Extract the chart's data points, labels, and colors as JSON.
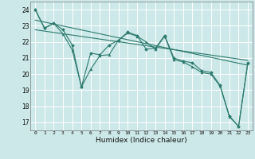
{
  "xlabel": "Humidex (Indice chaleur)",
  "bg_color": "#cce8e8",
  "grid_color": "#ffffff",
  "line_color": "#2d7a6e",
  "xlim": [
    -0.5,
    23.5
  ],
  "ylim": [
    16.5,
    24.5
  ],
  "yticks": [
    17,
    18,
    19,
    20,
    21,
    22,
    23,
    24
  ],
  "xticks": [
    0,
    1,
    2,
    3,
    4,
    5,
    6,
    7,
    8,
    9,
    10,
    11,
    12,
    13,
    14,
    15,
    16,
    17,
    18,
    19,
    20,
    21,
    22,
    23
  ],
  "series1_x": [
    0,
    1,
    2,
    3,
    4,
    5,
    6,
    7,
    8,
    9,
    10,
    11,
    12,
    13,
    14,
    15,
    16,
    17,
    18,
    19,
    20,
    21,
    22,
    23
  ],
  "series1_y": [
    24.0,
    22.85,
    23.15,
    22.75,
    21.8,
    19.2,
    21.3,
    21.2,
    21.8,
    22.1,
    22.6,
    22.4,
    21.55,
    21.6,
    22.4,
    21.0,
    20.8,
    20.7,
    20.2,
    20.1,
    19.3,
    17.4,
    16.75,
    20.7
  ],
  "series2_x": [
    0,
    1,
    2,
    3,
    4,
    5,
    6,
    7,
    8,
    9,
    10,
    11,
    12,
    13,
    14,
    15,
    16,
    17,
    18,
    19,
    20,
    21,
    22,
    23
  ],
  "series2_y": [
    24.0,
    22.85,
    23.15,
    22.5,
    21.5,
    19.2,
    20.3,
    21.15,
    21.2,
    22.1,
    22.55,
    22.35,
    22.0,
    21.55,
    22.35,
    20.9,
    20.75,
    20.45,
    20.1,
    20.0,
    19.25,
    17.35,
    16.75,
    20.7
  ],
  "trend1_x": [
    0,
    23
  ],
  "trend1_y": [
    23.35,
    20.55
  ],
  "trend2_x": [
    0,
    23
  ],
  "trend2_y": [
    22.75,
    20.85
  ]
}
